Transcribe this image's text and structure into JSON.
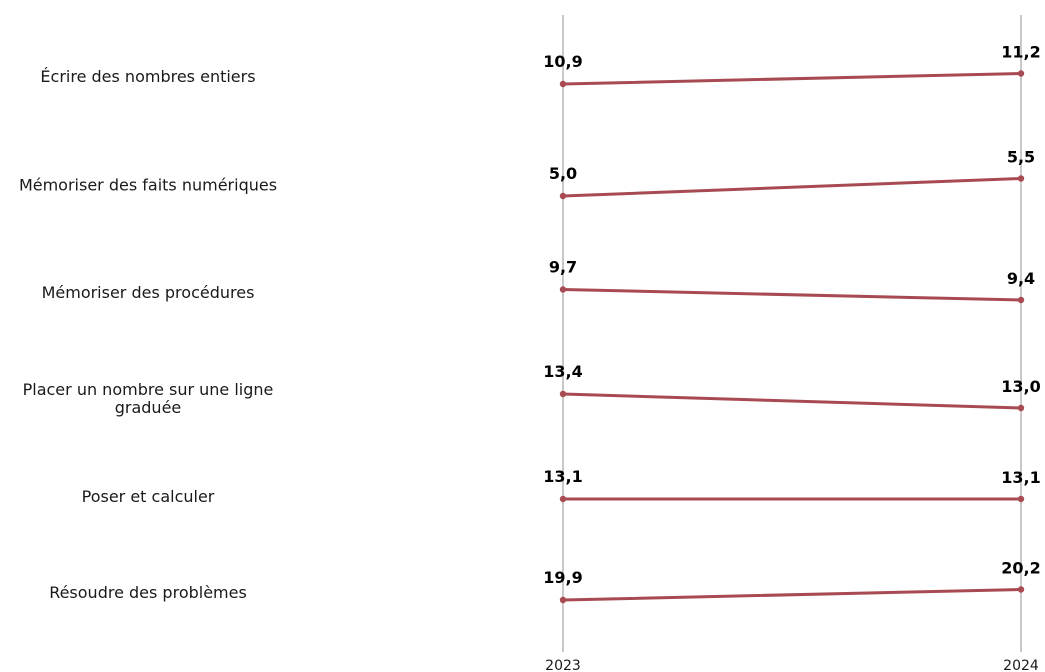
{
  "chart_data": {
    "type": "slope",
    "x": [
      "2023",
      "2024"
    ],
    "categories": [
      {
        "label_lines": [
          "Écrire des nombres entiers"
        ],
        "values": [
          10.9,
          11.2
        ],
        "value_labels": [
          "10,9",
          "11,2"
        ]
      },
      {
        "label_lines": [
          "Mémoriser des faits numériques"
        ],
        "values": [
          5.0,
          5.5
        ],
        "value_labels": [
          "5,0",
          "5,5"
        ]
      },
      {
        "label_lines": [
          "Mémoriser des procédures"
        ],
        "values": [
          9.7,
          9.4
        ],
        "value_labels": [
          "9,7",
          "9,4"
        ]
      },
      {
        "label_lines": [
          "Placer un nombre sur une ligne",
          "graduée"
        ],
        "values": [
          13.4,
          13.0
        ],
        "value_labels": [
          "13,4",
          "13,0"
        ]
      },
      {
        "label_lines": [
          "Poser et calculer"
        ],
        "values": [
          13.1,
          13.1
        ],
        "value_labels": [
          "13,1",
          "13,1"
        ]
      },
      {
        "label_lines": [
          "Résoudre des problèmes"
        ],
        "values": [
          19.9,
          20.2
        ],
        "value_labels": [
          "19,9",
          "20,2"
        ]
      }
    ],
    "title": "",
    "xlabel": "",
    "ylabel": "",
    "grid": false,
    "colors": {
      "line": "#a84a52",
      "axis": "#c8c8c8",
      "text": "#1a1a1a"
    }
  }
}
